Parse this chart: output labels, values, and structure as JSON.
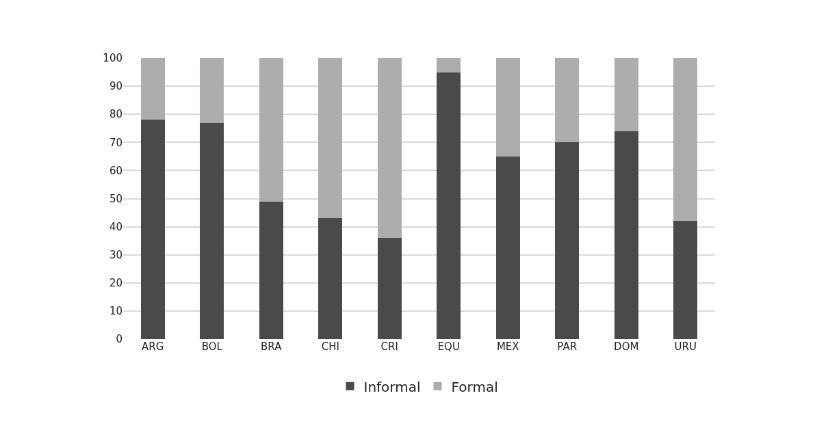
{
  "chart_data": {
    "type": "bar",
    "stacked": true,
    "categories": [
      "ARG",
      "BOL",
      "BRA",
      "CHI",
      "CRI",
      "EQU",
      "MEX",
      "PAR",
      "DOM",
      "URU"
    ],
    "series": [
      {
        "name": "Informal",
        "color": "#4a4a4a",
        "values": [
          78,
          77,
          49,
          43,
          36,
          95,
          65,
          70,
          74,
          42
        ]
      },
      {
        "name": "Formal",
        "color": "#adadad",
        "values": [
          22,
          23,
          51,
          57,
          64,
          5,
          35,
          30,
          26,
          58
        ]
      }
    ],
    "ylim": [
      0,
      100
    ],
    "yticks": [
      0,
      10,
      20,
      30,
      40,
      50,
      60,
      70,
      80,
      90,
      100
    ],
    "grid": "y",
    "legend": "bottom"
  }
}
